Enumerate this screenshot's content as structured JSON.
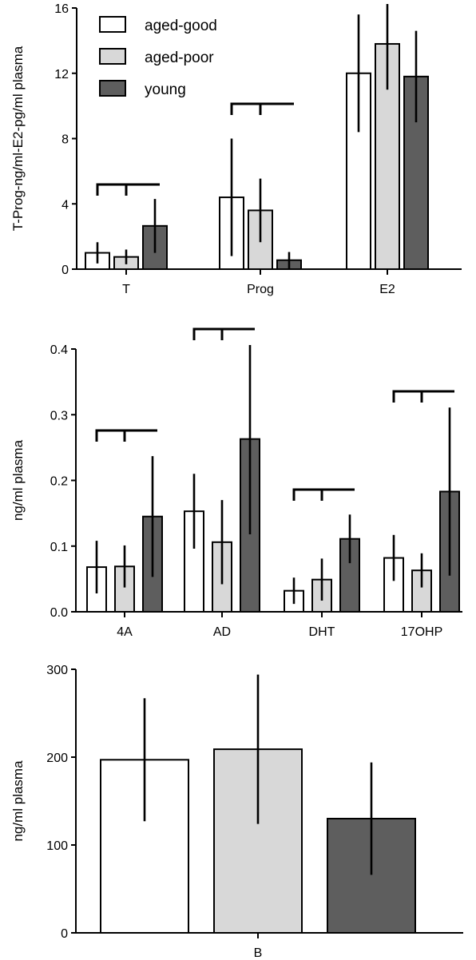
{
  "colors": {
    "aged-good": "#ffffff",
    "aged-poor": "#d8d8d8",
    "young": "#5e5e5e"
  },
  "chart_data": [
    {
      "type": "bar",
      "ylabel": "T-Prog-ng/ml-E2-pg/ml plasma",
      "ylim": [
        0,
        16
      ],
      "yticks": [
        0,
        4,
        8,
        12,
        16
      ],
      "categories": [
        "T",
        "Prog",
        "E2"
      ],
      "legend": {
        "placement": "top-left",
        "entries": [
          "aged-good",
          "aged-poor",
          "young"
        ]
      },
      "series": [
        {
          "name": "aged-good",
          "values": [
            1.0,
            4.4,
            12.0
          ],
          "errors": [
            0.65,
            3.6,
            3.6
          ]
        },
        {
          "name": "aged-poor",
          "values": [
            0.75,
            3.6,
            13.8
          ],
          "errors": [
            0.45,
            1.95,
            2.8
          ]
        },
        {
          "name": "young",
          "values": [
            2.65,
            0.55,
            11.8
          ],
          "errors": [
            1.65,
            0.5,
            2.8
          ]
        }
      ],
      "brackets": [
        0,
        1
      ]
    },
    {
      "type": "bar",
      "ylabel": "ng/ml plasma",
      "ylim": [
        0,
        0.4
      ],
      "yticks": [
        "0.0",
        "0.1",
        "0.2",
        "0.3",
        "0.4"
      ],
      "categories": [
        "4A",
        "AD",
        "DHT",
        "17OHP"
      ],
      "series": [
        {
          "name": "aged-good",
          "values": [
            0.068,
            0.153,
            0.032,
            0.082
          ],
          "errors": [
            0.04,
            0.057,
            0.02,
            0.035
          ]
        },
        {
          "name": "aged-poor",
          "values": [
            0.069,
            0.106,
            0.049,
            0.063
          ],
          "errors": [
            0.032,
            0.064,
            0.032,
            0.026
          ]
        },
        {
          "name": "young",
          "values": [
            0.145,
            0.263,
            0.111,
            0.183
          ],
          "errors": [
            0.092,
            0.145,
            0.037,
            0.128
          ]
        }
      ],
      "brackets": [
        0,
        1,
        2,
        3
      ]
    },
    {
      "type": "bar",
      "ylabel": "ng/ml plasma",
      "ylim": [
        0,
        300
      ],
      "yticks": [
        0,
        100,
        200,
        300
      ],
      "categories": [
        "B"
      ],
      "series": [
        {
          "name": "aged-good",
          "values": [
            197
          ],
          "errors": [
            70
          ]
        },
        {
          "name": "aged-poor",
          "values": [
            209
          ],
          "errors": [
            85
          ]
        },
        {
          "name": "young",
          "values": [
            130
          ],
          "errors": [
            64
          ]
        }
      ],
      "brackets": []
    }
  ]
}
